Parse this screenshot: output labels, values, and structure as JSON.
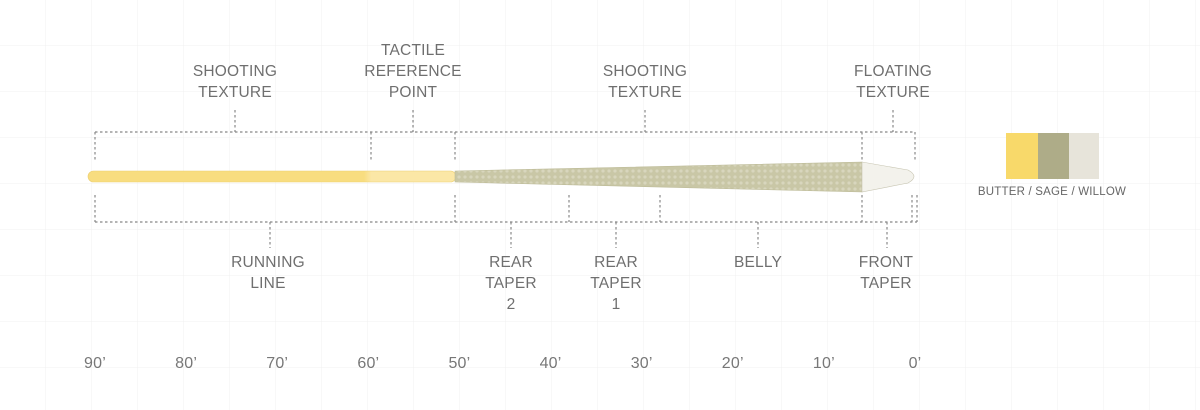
{
  "top_labels": [
    {
      "lines": [
        "SHOOTING",
        "TEXTURE"
      ]
    },
    {
      "lines": [
        "TACTILE",
        "REFERENCE",
        "POINT"
      ]
    },
    {
      "lines": [
        "SHOOTING",
        "TEXTURE"
      ]
    },
    {
      "lines": [
        "FLOATING",
        "TEXTURE"
      ]
    }
  ],
  "bottom_labels": [
    {
      "lines": [
        "RUNNING",
        "LINE"
      ]
    },
    {
      "lines": [
        "REAR",
        "TAPER",
        "2"
      ]
    },
    {
      "lines": [
        "REAR",
        "TAPER",
        "1"
      ]
    },
    {
      "lines": [
        "BELLY"
      ]
    },
    {
      "lines": [
        "FRONT",
        "TAPER"
      ]
    }
  ],
  "scale": [
    "90’",
    "80’",
    "70’",
    "60’",
    "50’",
    "40’",
    "30’",
    "20’",
    "10’",
    "0’"
  ],
  "legend": {
    "label": "BUTTER / SAGE / WILLOW"
  }
}
